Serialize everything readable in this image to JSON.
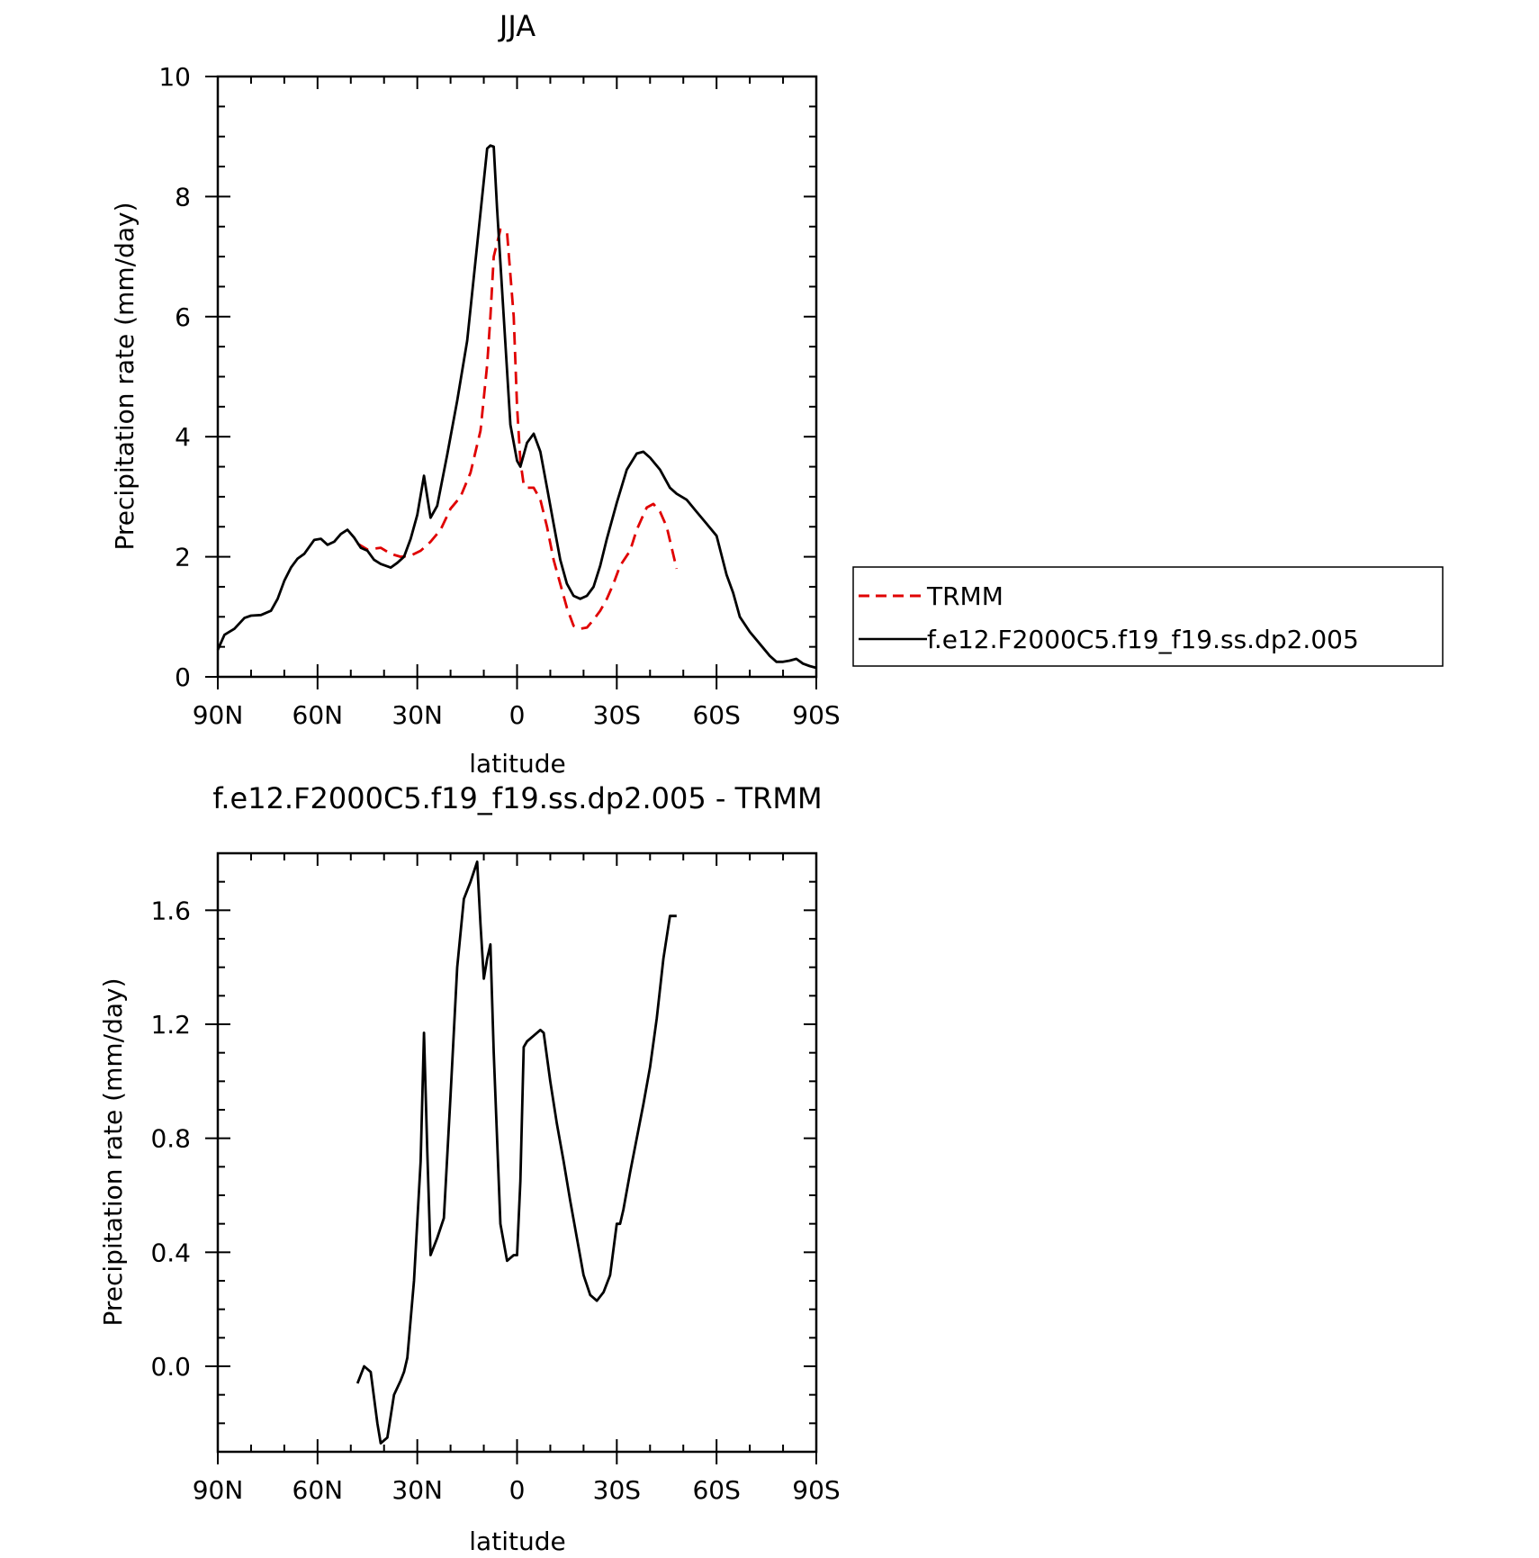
{
  "figure": {
    "background": "#ffffff"
  },
  "chart_data": [
    {
      "type": "line",
      "title": "JJA",
      "xlabel": "latitude",
      "ylabel": "Precipitation rate (mm/day)",
      "xlim": [
        90,
        -90
      ],
      "ylim": [
        0,
        10
      ],
      "x_ticks": [
        {
          "value": 90,
          "label": "90N"
        },
        {
          "value": 60,
          "label": "60N"
        },
        {
          "value": 30,
          "label": "30N"
        },
        {
          "value": 0,
          "label": "0"
        },
        {
          "value": -30,
          "label": "30S"
        },
        {
          "value": -60,
          "label": "60S"
        },
        {
          "value": -90,
          "label": "90S"
        }
      ],
      "y_ticks": [
        {
          "value": 0,
          "label": "0"
        },
        {
          "value": 2,
          "label": "2"
        },
        {
          "value": 4,
          "label": "4"
        },
        {
          "value": 6,
          "label": "6"
        },
        {
          "value": 8,
          "label": "8"
        },
        {
          "value": 10,
          "label": "10"
        }
      ],
      "grid": false,
      "legend": "right",
      "series": [
        {
          "name": "TRMM",
          "color": "#e00000",
          "style": "dashed",
          "x": [
            48,
            45,
            41,
            38,
            35,
            32,
            29,
            26,
            23,
            20,
            17,
            14,
            11,
            9,
            8,
            7,
            5,
            3,
            1,
            0,
            -1,
            -2,
            -3,
            -5,
            -7,
            -9,
            -11,
            -13,
            -15,
            -17,
            -19,
            -21,
            -23,
            -25,
            -27,
            -29,
            -31,
            -34,
            -36,
            -38,
            -39,
            -41,
            -43,
            -45,
            -48
          ],
          "values": [
            2.22,
            2.12,
            2.15,
            2.05,
            2.0,
            2.02,
            2.1,
            2.25,
            2.45,
            2.8,
            3.0,
            3.4,
            4.1,
            5.2,
            6.0,
            7.0,
            7.45,
            7.4,
            6.0,
            4.5,
            3.6,
            3.2,
            3.15,
            3.15,
            2.95,
            2.5,
            1.95,
            1.55,
            1.15,
            0.85,
            0.8,
            0.82,
            0.95,
            1.1,
            1.3,
            1.55,
            1.85,
            2.1,
            2.45,
            2.7,
            2.82,
            2.88,
            2.75,
            2.5,
            1.8
          ]
        },
        {
          "name": "f.e12.F2000C5.f19_f19.ss.dp2.005",
          "color": "#000000",
          "style": "solid",
          "x": [
            90,
            88,
            85,
            82,
            80,
            77,
            74,
            72,
            70,
            68,
            66,
            64,
            61,
            59,
            57,
            55,
            53,
            51,
            49,
            47,
            45,
            43,
            41,
            38,
            36,
            34,
            32,
            30,
            28,
            26,
            24,
            21,
            18,
            15,
            12,
            9,
            8,
            7,
            6,
            4,
            2,
            0,
            -1,
            -3,
            -5,
            -7,
            -9,
            -11,
            -13,
            -15,
            -17,
            -19,
            -21,
            -23,
            -25,
            -27,
            -30,
            -33,
            -36,
            -38,
            -40,
            -43,
            -46,
            -48,
            -51,
            -54,
            -57,
            -60,
            -63,
            -65,
            -67,
            -70,
            -73,
            -76,
            -78,
            -80,
            -82,
            -84,
            -86,
            -88,
            -90
          ],
          "values": [
            0.45,
            0.7,
            0.8,
            0.98,
            1.02,
            1.03,
            1.1,
            1.3,
            1.6,
            1.82,
            1.97,
            2.05,
            2.28,
            2.3,
            2.2,
            2.25,
            2.38,
            2.45,
            2.32,
            2.15,
            2.1,
            1.95,
            1.88,
            1.82,
            1.9,
            2.0,
            2.3,
            2.7,
            3.35,
            2.65,
            2.85,
            3.7,
            4.6,
            5.6,
            7.2,
            8.8,
            8.85,
            8.83,
            7.8,
            6.0,
            4.2,
            3.6,
            3.5,
            3.9,
            4.05,
            3.75,
            3.15,
            2.55,
            1.95,
            1.55,
            1.35,
            1.3,
            1.35,
            1.5,
            1.85,
            2.3,
            2.9,
            3.45,
            3.72,
            3.75,
            3.65,
            3.45,
            3.15,
            3.05,
            2.95,
            2.75,
            2.55,
            2.35,
            1.7,
            1.4,
            1.0,
            0.75,
            0.55,
            0.35,
            0.25,
            0.25,
            0.27,
            0.3,
            0.22,
            0.18,
            0.15
          ]
        }
      ]
    },
    {
      "type": "line",
      "title": "f.e12.F2000C5.f19_f19.ss.dp2.005 - TRMM",
      "xlabel": "latitude",
      "ylabel": "Precipitation rate (mm/day)",
      "xlim": [
        90,
        -90
      ],
      "ylim": [
        -0.3,
        1.8
      ],
      "x_ticks": [
        {
          "value": 90,
          "label": "90N"
        },
        {
          "value": 60,
          "label": "60N"
        },
        {
          "value": 30,
          "label": "30N"
        },
        {
          "value": 0,
          "label": "0"
        },
        {
          "value": -30,
          "label": "30S"
        },
        {
          "value": -60,
          "label": "60S"
        },
        {
          "value": -90,
          "label": "90S"
        }
      ],
      "y_ticks": [
        {
          "value": 0.0,
          "label": "0.0"
        },
        {
          "value": 0.4,
          "label": "0.4"
        },
        {
          "value": 0.8,
          "label": "0.8"
        },
        {
          "value": 1.2,
          "label": "1.2"
        },
        {
          "value": 1.6,
          "label": "1.6"
        }
      ],
      "grid": false,
      "series": [
        {
          "color": "#000000",
          "style": "solid",
          "x": [
            48,
            46,
            44,
            42,
            41,
            39,
            37,
            35,
            34,
            33,
            31,
            29,
            28,
            27,
            26,
            24,
            22,
            20,
            18,
            16,
            15,
            14,
            12,
            11,
            10,
            9,
            8,
            7,
            5,
            3,
            1,
            0,
            -1,
            -2,
            -3,
            -5,
            -7,
            -8,
            -10,
            -12,
            -14,
            -16,
            -18,
            -20,
            -22,
            -24,
            -26,
            -28,
            -30,
            -31,
            -32,
            -34,
            -36,
            -38,
            -40,
            -42,
            -44,
            -46,
            -48
          ],
          "values": [
            -0.06,
            0.0,
            -0.02,
            -0.2,
            -0.27,
            -0.25,
            -0.1,
            -0.05,
            -0.02,
            0.03,
            0.3,
            0.72,
            1.17,
            0.75,
            0.39,
            0.45,
            0.52,
            0.95,
            1.4,
            1.64,
            1.67,
            1.7,
            1.77,
            1.55,
            1.36,
            1.43,
            1.48,
            1.1,
            0.5,
            0.37,
            0.39,
            0.39,
            0.65,
            1.12,
            1.14,
            1.16,
            1.18,
            1.17,
            1.0,
            0.85,
            0.72,
            0.58,
            0.45,
            0.32,
            0.25,
            0.23,
            0.26,
            0.32,
            0.5,
            0.5,
            0.55,
            0.68,
            0.8,
            0.92,
            1.05,
            1.22,
            1.43,
            1.58,
            1.58
          ]
        }
      ]
    }
  ]
}
